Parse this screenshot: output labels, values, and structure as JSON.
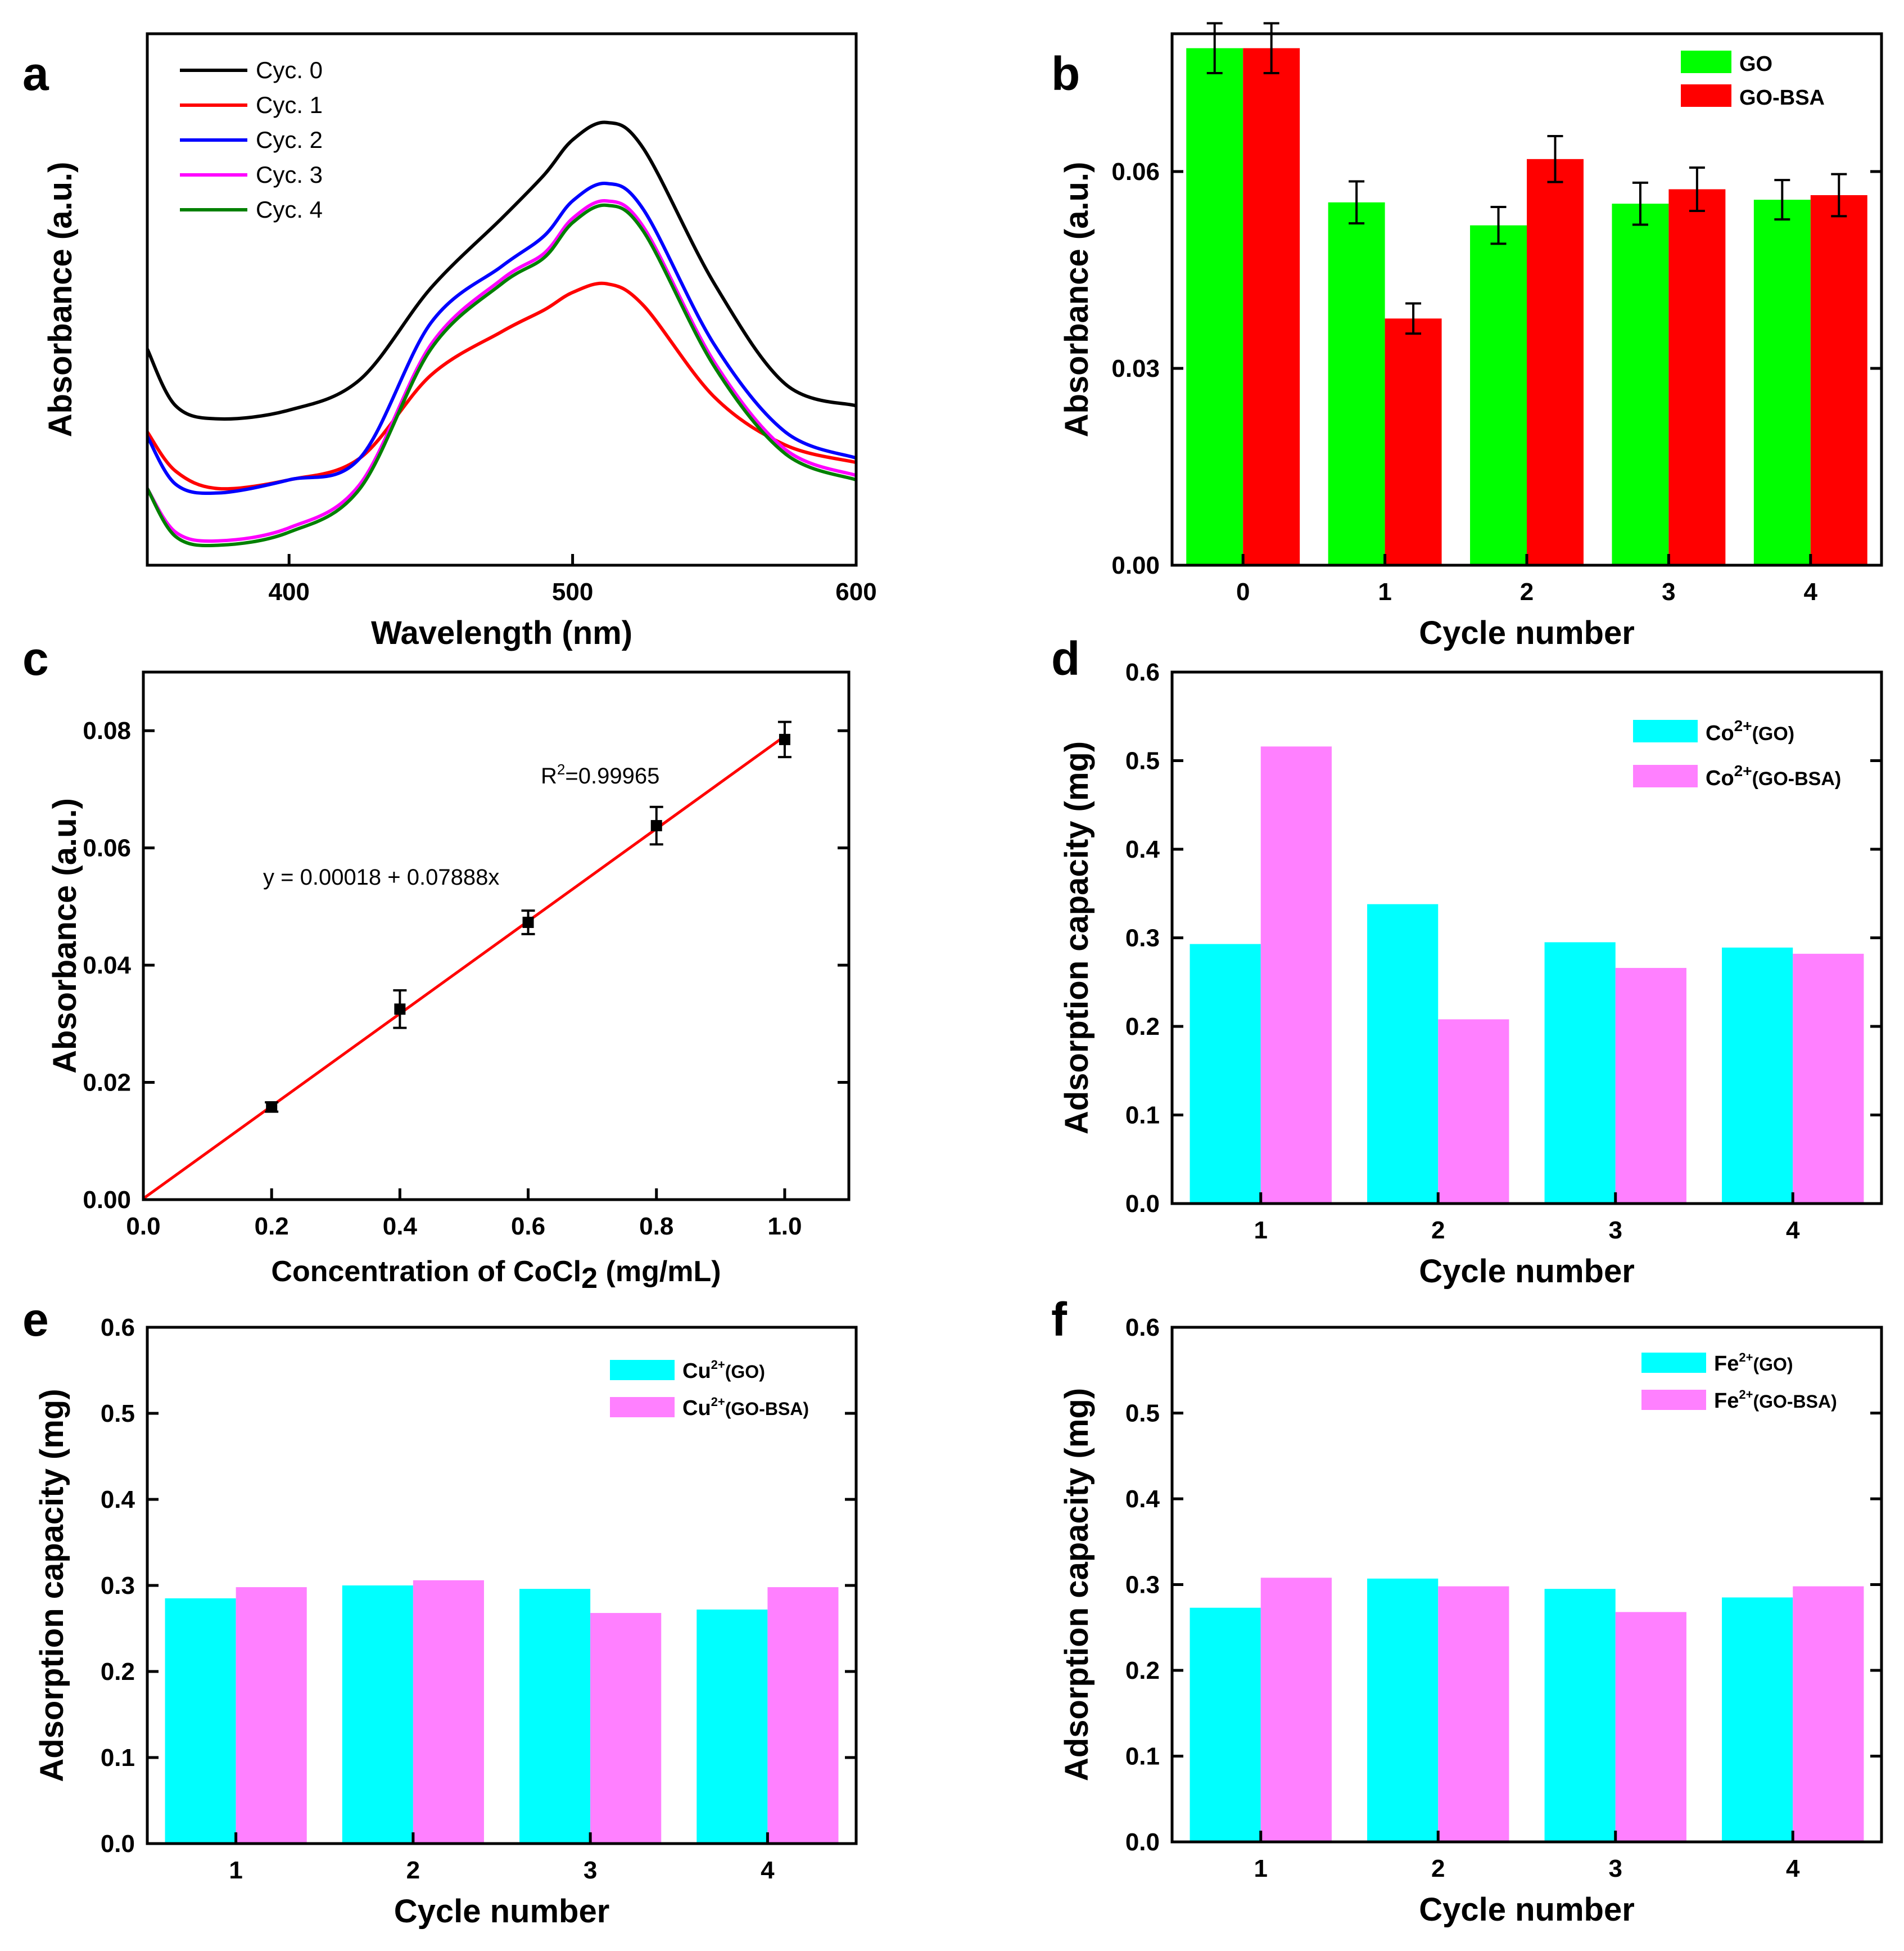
{
  "chart_data": [
    {
      "panel": "a",
      "type": "line",
      "xlabel": "Wavelength (nm)",
      "ylabel": "Absorbance (a.u.)",
      "xlim": [
        350,
        600
      ],
      "ylim": [
        0,
        1
      ],
      "xticks": [
        400,
        500,
        600
      ],
      "x": [
        350,
        360,
        375,
        400,
        425,
        450,
        475,
        490,
        500,
        512,
        525,
        550,
        575,
        600
      ],
      "series": [
        {
          "name": "Cyc. 0",
          "color": "#000000",
          "values": [
            0.47,
            0.34,
            0.31,
            0.33,
            0.4,
            0.61,
            0.77,
            0.87,
            0.95,
            0.99,
            0.93,
            0.62,
            0.39,
            0.34
          ]
        },
        {
          "name": "Cyc. 1",
          "color": "#ff0000",
          "values": [
            0.28,
            0.19,
            0.15,
            0.17,
            0.22,
            0.41,
            0.51,
            0.56,
            0.6,
            0.62,
            0.57,
            0.36,
            0.25,
            0.21
          ]
        },
        {
          "name": "Cyc. 2",
          "color": "#0000ff",
          "values": [
            0.27,
            0.16,
            0.14,
            0.17,
            0.22,
            0.53,
            0.66,
            0.73,
            0.81,
            0.85,
            0.79,
            0.48,
            0.28,
            0.22
          ]
        },
        {
          "name": "Cyc. 3",
          "color": "#ff00ff",
          "values": [
            0.15,
            0.05,
            0.03,
            0.06,
            0.16,
            0.48,
            0.63,
            0.69,
            0.77,
            0.81,
            0.75,
            0.44,
            0.24,
            0.18
          ]
        },
        {
          "name": "Cyc. 4",
          "color": "#008000",
          "values": [
            0.15,
            0.04,
            0.02,
            0.05,
            0.15,
            0.47,
            0.62,
            0.68,
            0.76,
            0.8,
            0.74,
            0.43,
            0.23,
            0.17
          ]
        }
      ]
    },
    {
      "panel": "b",
      "type": "bar",
      "xlabel": "Cycle number",
      "ylabel": "Absorbance (a.u.)",
      "categories": [
        "0",
        "1",
        "2",
        "3",
        "4"
      ],
      "ylim": [
        0,
        0.081
      ],
      "yticks": [
        0.0,
        0.03,
        0.06
      ],
      "ytick_labels": [
        "0.00",
        "0.03",
        "0.06"
      ],
      "series": [
        {
          "name": "GO",
          "color": "#00ff00",
          "values": [
            0.0788,
            0.0553,
            0.0518,
            0.0551,
            0.0557
          ],
          "errors": [
            0.0038,
            0.0032,
            0.0028,
            0.0032,
            0.003
          ]
        },
        {
          "name": "GO-BSA",
          "color": "#ff0000",
          "values": [
            0.0788,
            0.0376,
            0.0619,
            0.0573,
            0.0564
          ],
          "errors": [
            0.0038,
            0.0023,
            0.0035,
            0.0033,
            0.0032
          ]
        }
      ]
    },
    {
      "panel": "c",
      "type": "scatter",
      "xlabel": "Concentration of CoCl",
      "xlabel_sub": "2",
      "xlabel_tail": " (mg/mL)",
      "ylabel": "Absorbance (a.u.)",
      "xlim": [
        0,
        1.1
      ],
      "ylim": [
        0,
        0.09
      ],
      "xticks": [
        0.0,
        0.2,
        0.4,
        0.6,
        0.8,
        1.0
      ],
      "xtick_labels": [
        "0.0",
        "0.2",
        "0.4",
        "0.6",
        "0.8",
        "1.0"
      ],
      "yticks": [
        0.0,
        0.02,
        0.04,
        0.06,
        0.08
      ],
      "ytick_labels": [
        "0.00",
        "0.02",
        "0.04",
        "0.06",
        "0.08"
      ],
      "x": [
        0.2,
        0.4,
        0.6,
        0.8,
        1.0
      ],
      "y": [
        0.0158,
        0.0325,
        0.0473,
        0.0638,
        0.0785
      ],
      "errors": [
        0.0008,
        0.0032,
        0.002,
        0.0032,
        0.003
      ],
      "fit": {
        "intercept": 0.00018,
        "slope": 0.07888,
        "x_range": [
          0,
          1.0
        ],
        "color": "#ff0000"
      },
      "equation": "y = 0.00018 + 0.07888x",
      "r2_label": "R",
      "r2_sup": "2",
      "r2_value": "=0.99965"
    },
    {
      "panel": "d",
      "type": "bar",
      "xlabel": "Cycle number",
      "ylabel": "Adsorption capacity (mg)",
      "categories": [
        "1",
        "2",
        "3",
        "4"
      ],
      "ylim": [
        0,
        0.6
      ],
      "yticks": [
        0.0,
        0.1,
        0.2,
        0.3,
        0.4,
        0.5,
        0.6
      ],
      "ytick_labels": [
        "0.0",
        "0.1",
        "0.2",
        "0.3",
        "0.4",
        "0.5",
        "0.6"
      ],
      "series": [
        {
          "name": "Co",
          "sup": "2+",
          "suffix": "(GO)",
          "color": "#00ffff",
          "values": [
            0.293,
            0.338,
            0.295,
            0.289
          ]
        },
        {
          "name": "Co",
          "sup": "2+",
          "suffix": "(GO-BSA)",
          "color": "#ff80ff",
          "values": [
            0.516,
            0.208,
            0.266,
            0.282
          ]
        }
      ]
    },
    {
      "panel": "e",
      "type": "bar",
      "xlabel": "Cycle number",
      "ylabel": "Adsorption capacity (mg)",
      "categories": [
        "1",
        "2",
        "3",
        "4"
      ],
      "ylim": [
        0,
        0.6
      ],
      "yticks": [
        0.0,
        0.1,
        0.2,
        0.3,
        0.4,
        0.5,
        0.6
      ],
      "ytick_labels": [
        "0.0",
        "0.1",
        "0.2",
        "0.3",
        "0.4",
        "0.5",
        "0.6"
      ],
      "series": [
        {
          "name": "Cu",
          "sup": "2+",
          "suffix": "(GO)",
          "color": "#00ffff",
          "values": [
            0.285,
            0.3,
            0.296,
            0.272
          ]
        },
        {
          "name": "Cu",
          "sup": "2+",
          "suffix": "(GO-BSA)",
          "color": "#ff80ff",
          "values": [
            0.298,
            0.306,
            0.268,
            0.298
          ]
        }
      ]
    },
    {
      "panel": "f",
      "type": "bar",
      "xlabel": "Cycle number",
      "ylabel": "Adsorption capacity (mg)",
      "categories": [
        "1",
        "2",
        "3",
        "4"
      ],
      "ylim": [
        0,
        0.6
      ],
      "yticks": [
        0.0,
        0.1,
        0.2,
        0.3,
        0.4,
        0.5,
        0.6
      ],
      "ytick_labels": [
        "0.0",
        "0.1",
        "0.2",
        "0.3",
        "0.4",
        "0.5",
        "0.6"
      ],
      "series": [
        {
          "name": "Fe",
          "sup": "2+",
          "suffix": "(GO)",
          "color": "#00ffff",
          "values": [
            0.273,
            0.307,
            0.295,
            0.285
          ]
        },
        {
          "name": "Fe",
          "sup": "2+",
          "suffix": "(GO-BSA)",
          "color": "#ff80ff",
          "values": [
            0.308,
            0.298,
            0.268,
            0.298
          ]
        }
      ]
    }
  ]
}
